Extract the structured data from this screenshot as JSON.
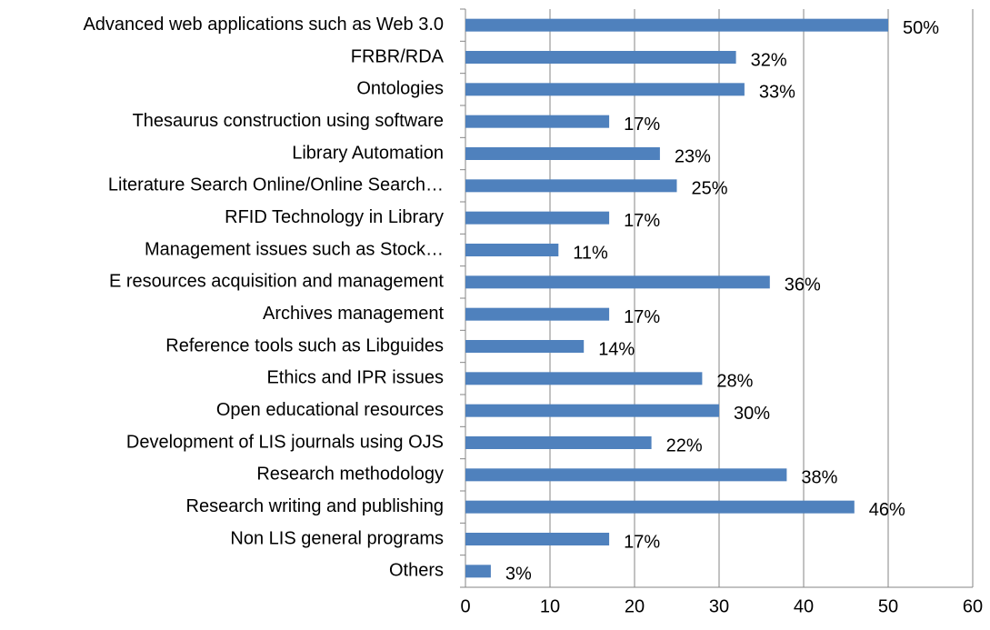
{
  "chart_data": {
    "type": "bar",
    "orientation": "horizontal",
    "categories": [
      "Advanced web applications such as Web 3.0",
      "FRBR/RDA",
      "Ontologies",
      "Thesaurus construction using software",
      "Library Automation",
      "Literature Search Online/Online Search…",
      "RFID Technology in Library",
      "Management issues such as Stock…",
      "E resources acquisition and management",
      "Archives management",
      "Reference tools such as Libguides",
      "Ethics and IPR issues",
      "Open educational resources",
      "Development of LIS journals using OJS",
      "Research methodology",
      "Research writing and publishing",
      "Non LIS general programs",
      "Others"
    ],
    "values": [
      50,
      32,
      33,
      17,
      23,
      25,
      17,
      11,
      36,
      17,
      14,
      28,
      30,
      22,
      38,
      46,
      17,
      3
    ],
    "value_labels": [
      "50%",
      "32%",
      "33%",
      "17%",
      "23%",
      "25%",
      "17%",
      "11%",
      "36%",
      "17%",
      "14%",
      "28%",
      "30%",
      "22%",
      "38%",
      "46%",
      "17%",
      "3%"
    ],
    "color": "#4f81bd",
    "xlim": [
      0,
      60
    ],
    "xticks": [
      0,
      10,
      20,
      30,
      40,
      50,
      60
    ],
    "grid": true
  }
}
